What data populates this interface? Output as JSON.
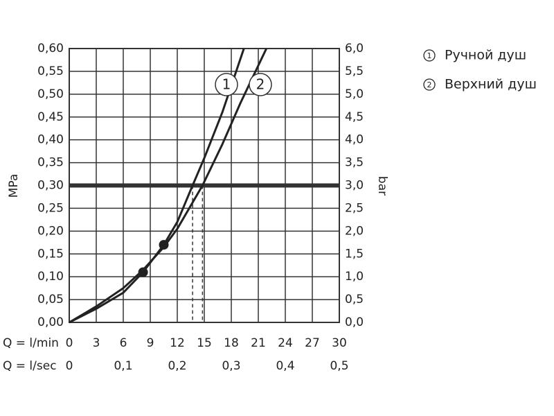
{
  "chart_data": {
    "type": "line",
    "x_label": "Q = l/min",
    "x2_label": "Q = l/sec",
    "y_label": "MPa",
    "y2_label": "bar",
    "xlim": [
      0,
      30
    ],
    "xticks": [
      0,
      3,
      6,
      9,
      12,
      15,
      18,
      21,
      24,
      27,
      30
    ],
    "x2lim": [
      0,
      0.5
    ],
    "x2ticks": [
      {
        "value": 0,
        "label": "0"
      },
      {
        "value": 0.1,
        "label": "0,1"
      },
      {
        "value": 0.2,
        "label": "0,2"
      },
      {
        "value": 0.3,
        "label": "0,3"
      },
      {
        "value": 0.4,
        "label": "0,4"
      },
      {
        "value": 0.5,
        "label": "0,5"
      }
    ],
    "ylim": [
      0,
      0.6
    ],
    "yticks": [
      {
        "value": 0,
        "label": "0,00"
      },
      {
        "value": 0.05,
        "label": "0,05"
      },
      {
        "value": 0.1,
        "label": "0,10"
      },
      {
        "value": 0.15,
        "label": "0,15"
      },
      {
        "value": 0.2,
        "label": "0,20"
      },
      {
        "value": 0.25,
        "label": "0,25"
      },
      {
        "value": 0.3,
        "label": "0,30"
      },
      {
        "value": 0.35,
        "label": "0,35"
      },
      {
        "value": 0.4,
        "label": "0,40"
      },
      {
        "value": 0.45,
        "label": "0,45"
      },
      {
        "value": 0.5,
        "label": "0,50"
      },
      {
        "value": 0.55,
        "label": "0,55"
      },
      {
        "value": 0.6,
        "label": "0,60"
      }
    ],
    "y2lim": [
      0,
      6
    ],
    "y2ticks": [
      {
        "value": 0,
        "label": "0,0"
      },
      {
        "value": 0.5,
        "label": "0,5"
      },
      {
        "value": 1,
        "label": "1,0"
      },
      {
        "value": 1.5,
        "label": "1,5"
      },
      {
        "value": 2,
        "label": "2,0"
      },
      {
        "value": 2.5,
        "label": "2,5"
      },
      {
        "value": 3,
        "label": "3,0"
      },
      {
        "value": 3.5,
        "label": "3,5"
      },
      {
        "value": 4,
        "label": "4,0"
      },
      {
        "value": 4.5,
        "label": "4,5"
      },
      {
        "value": 5,
        "label": "5,0"
      },
      {
        "value": 5.5,
        "label": "5,5"
      },
      {
        "value": 6,
        "label": "6,0"
      }
    ],
    "grid": true,
    "series": [
      {
        "label": "1",
        "name": "Ручной душ",
        "color": "#222222",
        "x": [
          0,
          3,
          6,
          8.2,
          10.5,
          12,
          13.7,
          15,
          17,
          19.4
        ],
        "values": [
          0,
          0.03,
          0.065,
          0.11,
          0.17,
          0.22,
          0.3,
          0.36,
          0.46,
          0.6
        ]
      },
      {
        "label": "2",
        "name": "Верхний душ",
        "color": "#222222",
        "x": [
          0,
          3,
          6,
          8.2,
          10.5,
          12,
          14.8,
          17,
          19,
          21.9
        ],
        "values": [
          0,
          0.035,
          0.075,
          0.115,
          0.165,
          0.205,
          0.3,
          0.39,
          0.48,
          0.6
        ]
      }
    ],
    "points": {
      "x": [
        8.2,
        10.5
      ],
      "values": [
        0.11,
        0.17
      ]
    },
    "reference_y": 0.3,
    "dashed_x": [
      13.7,
      14.8
    ]
  }
}
